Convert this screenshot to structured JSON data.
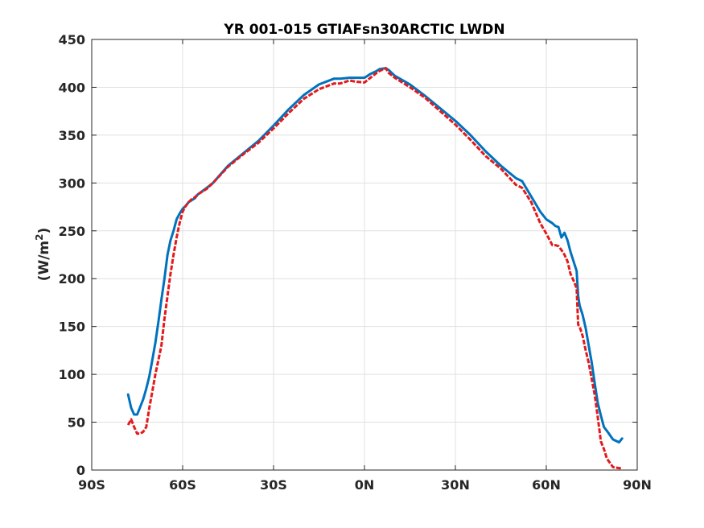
{
  "chart_data": {
    "type": "line",
    "title": "YR 001-015 GTIAFsn30ARCTIC LWDN",
    "xlabel": "",
    "ylabel": {
      "prefix": "(W/m",
      "sup": "2",
      "suffix": ")"
    },
    "xlim": [
      -90,
      90
    ],
    "ylim": [
      0,
      450
    ],
    "grid": true,
    "xticks": [
      {
        "value": -90,
        "label": "90S"
      },
      {
        "value": -60,
        "label": "60S"
      },
      {
        "value": -30,
        "label": "30S"
      },
      {
        "value": 0,
        "label": "0N"
      },
      {
        "value": 30,
        "label": "30N"
      },
      {
        "value": 60,
        "label": "60N"
      },
      {
        "value": 90,
        "label": "90N"
      }
    ],
    "yticks": [
      {
        "value": 0,
        "label": "0"
      },
      {
        "value": 50,
        "label": "50"
      },
      {
        "value": 100,
        "label": "100"
      },
      {
        "value": 150,
        "label": "150"
      },
      {
        "value": 200,
        "label": "200"
      },
      {
        "value": 250,
        "label": "250"
      },
      {
        "value": 300,
        "label": "300"
      },
      {
        "value": 350,
        "label": "350"
      },
      {
        "value": 400,
        "label": "400"
      },
      {
        "value": 450,
        "label": "450"
      }
    ],
    "series": [
      {
        "color": "#0072bd",
        "style": "solid",
        "x": [
          -78,
          -77,
          -76,
          -75,
          -74,
          -73,
          -72,
          -71,
          -70,
          -69,
          -68,
          -67,
          -66,
          -65,
          -64,
          -63,
          -62,
          -61,
          -60,
          -59,
          -58,
          -57,
          -56,
          -55,
          -52,
          -50,
          -45,
          -40,
          -35,
          -30,
          -25,
          -20,
          -15,
          -10,
          -8,
          -5,
          -3,
          0,
          2,
          4,
          5,
          7,
          8,
          10,
          15,
          20,
          25,
          30,
          35,
          40,
          45,
          50,
          52,
          55,
          58,
          60,
          62,
          63,
          64,
          65,
          66,
          67,
          68,
          69,
          70,
          70.5,
          71,
          72,
          73,
          74,
          75,
          76,
          77,
          78,
          79,
          80,
          82,
          84,
          85
        ],
        "y": [
          79,
          65,
          58,
          58,
          66,
          74,
          85,
          98,
          115,
          133,
          155,
          178,
          200,
          225,
          240,
          250,
          262,
          268,
          273,
          276,
          280,
          282,
          284,
          288,
          295,
          300,
          318,
          331,
          344,
          360,
          377,
          392,
          403,
          409,
          409,
          410,
          410,
          410,
          414,
          417,
          419,
          420,
          418,
          412,
          403,
          391,
          378,
          365,
          350,
          333,
          318,
          305,
          302,
          286,
          270,
          262,
          258,
          255,
          254,
          243,
          248,
          240,
          228,
          218,
          208,
          182,
          172,
          162,
          148,
          130,
          112,
          90,
          70,
          57,
          45,
          41,
          32,
          29,
          33
        ]
      },
      {
        "color": "#e31a1c",
        "style": "dashed",
        "x": [
          -78,
          -77,
          -76,
          -75,
          -74,
          -73,
          -72,
          -71,
          -70,
          -69,
          -68,
          -67,
          -66,
          -65,
          -64,
          -63,
          -62,
          -61,
          -60,
          -59,
          -58,
          -57,
          -56,
          -55,
          -52,
          -50,
          -45,
          -40,
          -35,
          -30,
          -25,
          -20,
          -15,
          -10,
          -8,
          -5,
          -3,
          0,
          2,
          4,
          5,
          7,
          8,
          10,
          15,
          20,
          25,
          30,
          35,
          40,
          45,
          50,
          52,
          55,
          58,
          60,
          62,
          63,
          64,
          65,
          66,
          67,
          68,
          69,
          70,
          70.5,
          71,
          72,
          73,
          74,
          75,
          76,
          77,
          78,
          79,
          80,
          82,
          84,
          85
        ],
        "y": [
          47,
          53,
          45,
          38,
          38,
          40,
          45,
          65,
          82,
          100,
          115,
          130,
          158,
          182,
          205,
          225,
          243,
          258,
          270,
          276,
          280,
          283,
          285,
          288,
          294,
          300,
          317,
          330,
          342,
          357,
          373,
          388,
          398,
          404,
          404,
          407,
          406,
          405,
          410,
          415,
          417,
          420,
          415,
          410,
          400,
          389,
          375,
          361,
          345,
          328,
          315,
          298,
          295,
          280,
          258,
          247,
          235,
          235,
          234,
          230,
          225,
          218,
          205,
          198,
          190,
          152,
          150,
          140,
          125,
          112,
          95,
          78,
          55,
          30,
          22,
          12,
          3,
          2,
          2
        ]
      }
    ]
  }
}
